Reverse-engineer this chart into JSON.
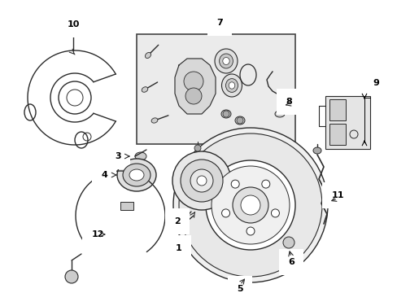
{
  "bg_color": "#ffffff",
  "line_color": "#2a2a2a",
  "box_fill": "#ebebeb",
  "figsize": [
    4.89,
    3.6
  ],
  "dpi": 100,
  "xlim": [
    0,
    489
  ],
  "ylim": [
    0,
    360
  ]
}
